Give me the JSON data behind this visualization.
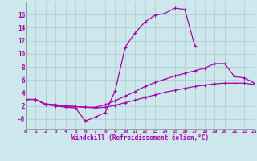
{
  "background_color": "#cce8ed",
  "grid_color": "#aacccc",
  "line_color": "#aa00aa",
  "xlabel": "Windchill (Refroidissement éolien,°C)",
  "xlim": [
    0,
    23
  ],
  "ylim": [
    -1.5,
    18.0
  ],
  "ytick_vals": [
    0,
    2,
    4,
    6,
    8,
    10,
    12,
    14,
    16
  ],
  "ytick_labels": [
    "-0",
    "2",
    "4",
    "6",
    "8",
    "10",
    "12",
    "14",
    "16"
  ],
  "xtick_vals": [
    0,
    1,
    2,
    3,
    4,
    5,
    6,
    7,
    8,
    9,
    10,
    11,
    12,
    13,
    14,
    15,
    16,
    17,
    18,
    19,
    20,
    21,
    22,
    23
  ],
  "series": [
    {
      "x": [
        0,
        1,
        2,
        3,
        4,
        5,
        6,
        7,
        8,
        9,
        10,
        11,
        12,
        13,
        14,
        15,
        16,
        17
      ],
      "y": [
        3.0,
        3.0,
        2.2,
        2.0,
        1.8,
        1.7,
        -0.3,
        0.3,
        1.0,
        4.3,
        11.0,
        13.2,
        14.9,
        15.9,
        16.2,
        17.0,
        16.8,
        11.2
      ]
    },
    {
      "x": [
        0,
        1,
        2,
        3,
        4,
        5,
        6,
        7,
        8,
        9,
        10,
        11,
        12,
        13,
        14,
        15,
        16,
        17,
        18,
        19,
        20,
        21,
        22,
        23
      ],
      "y": [
        3.0,
        3.0,
        2.3,
        2.2,
        2.0,
        1.9,
        1.8,
        1.8,
        2.2,
        2.8,
        3.5,
        4.2,
        5.0,
        5.6,
        6.1,
        6.6,
        7.0,
        7.4,
        7.8,
        8.5,
        8.5,
        6.5,
        6.3,
        5.5
      ]
    },
    {
      "x": [
        0,
        1,
        2,
        3,
        4,
        5,
        6,
        7,
        8,
        9,
        10,
        11,
        12,
        13,
        14,
        15,
        16,
        17,
        18,
        19,
        20,
        21,
        22,
        23
      ],
      "y": [
        3.0,
        3.0,
        2.2,
        2.1,
        2.0,
        1.9,
        1.8,
        1.7,
        1.8,
        2.1,
        2.5,
        2.9,
        3.3,
        3.7,
        4.1,
        4.4,
        4.7,
        5.0,
        5.2,
        5.4,
        5.5,
        5.5,
        5.5,
        5.3
      ]
    }
  ]
}
